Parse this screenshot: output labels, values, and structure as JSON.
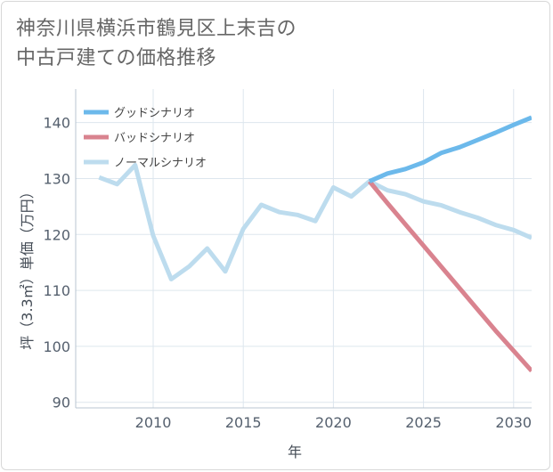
{
  "title_lines": [
    "神奈川県横浜市鶴見区上末吉の",
    "中古戸建ての価格推移"
  ],
  "chart_data": {
    "type": "line",
    "title": "神奈川県横浜市鶴見区上末吉の中古戸建ての価格推移",
    "xlabel": "年",
    "ylabel": "坪（3.3㎡）単価（万円）",
    "xlim": [
      2005.7,
      2031
    ],
    "ylim": [
      89,
      146
    ],
    "xticks": [
      2010,
      2015,
      2020,
      2025,
      2030
    ],
    "yticks": [
      90,
      100,
      110,
      120,
      130,
      140
    ],
    "grid": true,
    "legend_position": "top-left",
    "series": [
      {
        "name": "グッドシナリオ",
        "color": "#6cb9eb",
        "x": [
          2022,
          2023,
          2024,
          2025,
          2026,
          2027,
          2028,
          2029,
          2030,
          2031
        ],
        "y": [
          129.5,
          130.9,
          131.7,
          132.9,
          134.6,
          135.6,
          136.9,
          138.2,
          139.6,
          140.9
        ]
      },
      {
        "name": "バッドシナリオ",
        "color": "#d9838f",
        "x": [
          2022,
          2023,
          2024,
          2025,
          2026,
          2027,
          2028,
          2029,
          2030,
          2031
        ],
        "y": [
          129.5,
          125.6,
          121.8,
          118.0,
          114.2,
          110.4,
          106.6,
          102.8,
          99.2,
          95.6
        ]
      },
      {
        "name": "ノーマルシナリオ",
        "color": "#bddcee",
        "x": [
          2007,
          2008,
          2009,
          2010,
          2011,
          2012,
          2013,
          2014,
          2015,
          2016,
          2017,
          2018,
          2019,
          2020,
          2021,
          2022,
          2023,
          2024,
          2025,
          2026,
          2027,
          2028,
          2029,
          2030,
          2031
        ],
        "y": [
          130.2,
          129.0,
          132.4,
          119.8,
          112.0,
          114.3,
          117.5,
          113.4,
          121.0,
          125.3,
          124.0,
          123.5,
          122.4,
          128.4,
          126.8,
          129.5,
          127.9,
          127.2,
          125.9,
          125.2,
          124.0,
          123.0,
          121.7,
          120.8,
          119.4
        ]
      }
    ]
  }
}
